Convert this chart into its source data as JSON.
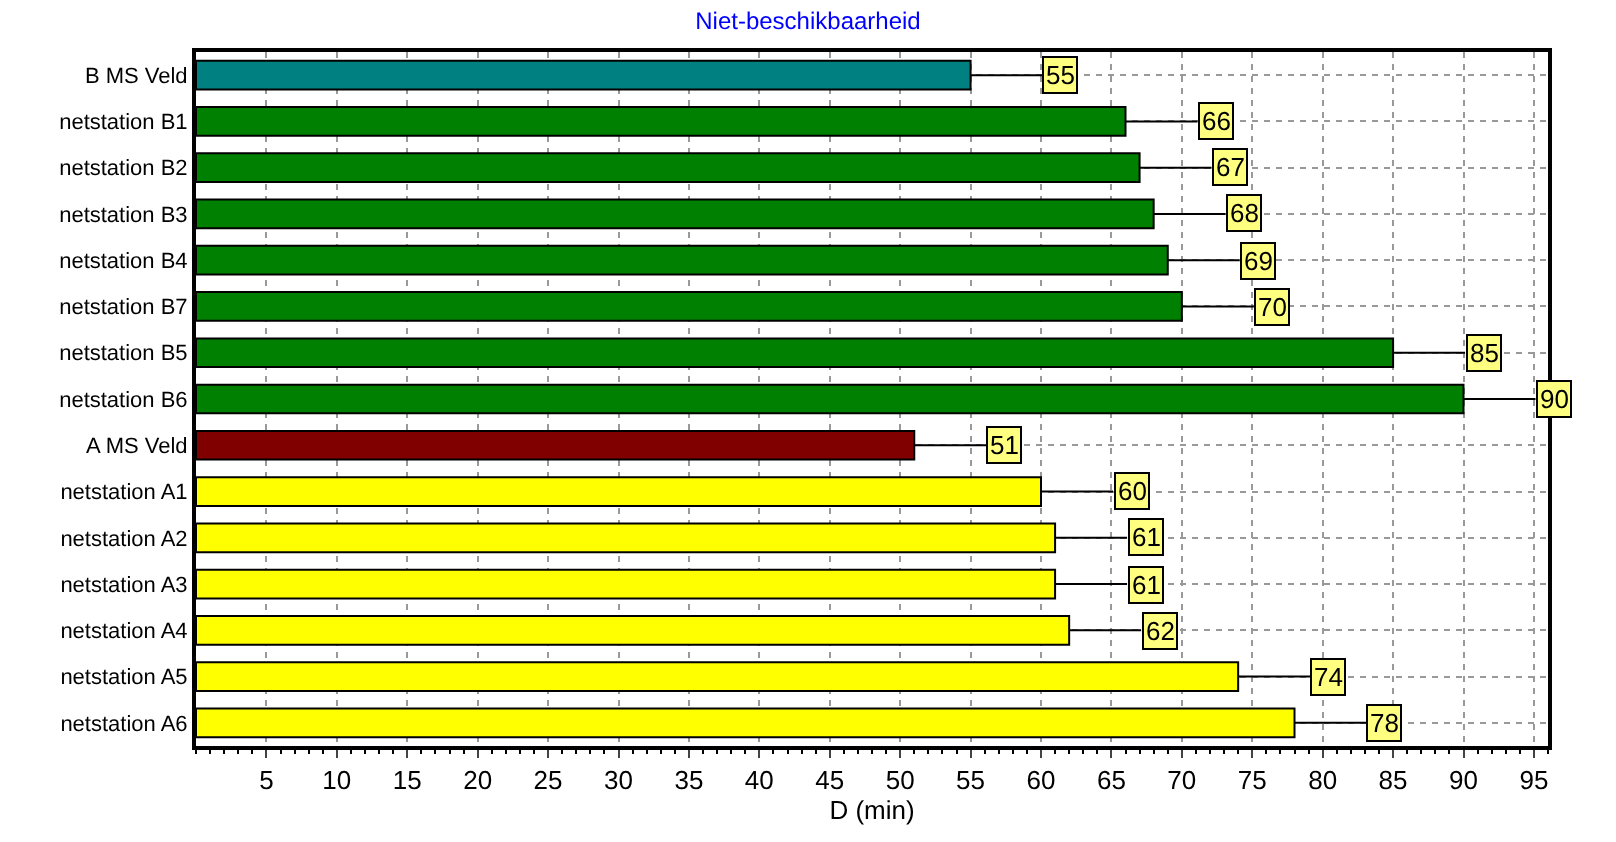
{
  "chart_data": {
    "type": "bar",
    "orientation": "horizontal",
    "title": "Niet-beschikbaarheid",
    "xlabel": "D (min)",
    "categories": [
      "B MS Veld",
      "netstation B1",
      "netstation B2",
      "netstation B3",
      "netstation B4",
      "netstation B7",
      "netstation B5",
      "netstation B6",
      "A MS Veld",
      "netstation A1",
      "netstation A2",
      "netstation A3",
      "netstation A4",
      "netstation A5",
      "netstation A6"
    ],
    "values": [
      55,
      66,
      67,
      68,
      69,
      70,
      85,
      90,
      51,
      60,
      61,
      61,
      62,
      74,
      78
    ],
    "colors": [
      "#008080",
      "#008000",
      "#008000",
      "#008000",
      "#008000",
      "#008000",
      "#008000",
      "#008000",
      "#800000",
      "#ffff00",
      "#ffff00",
      "#ffff00",
      "#ffff00",
      "#ffff00",
      "#ffff00"
    ],
    "data_labels": true,
    "xlim": [
      0,
      96
    ],
    "xticks": [
      5,
      10,
      15,
      20,
      25,
      30,
      35,
      40,
      45,
      50,
      55,
      60,
      65,
      70,
      75,
      80,
      85,
      90,
      95
    ],
    "grid": true
  }
}
